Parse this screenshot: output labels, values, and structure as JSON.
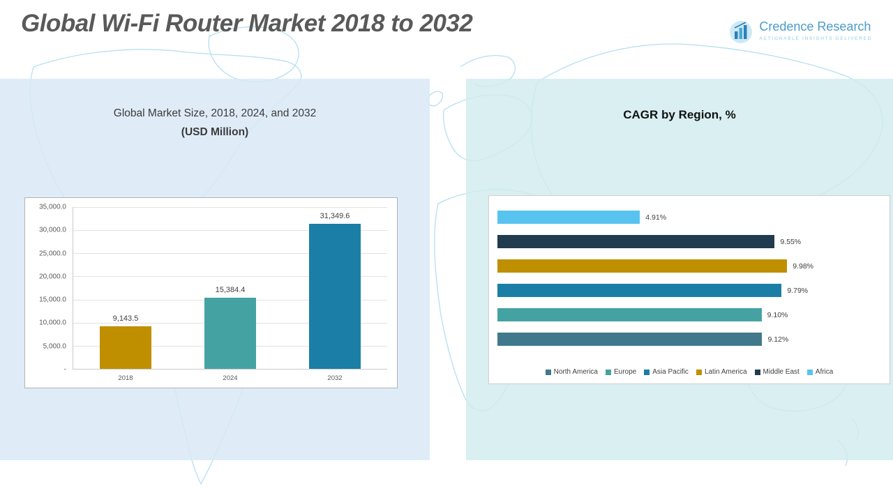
{
  "header": {
    "title": "Global Wi-Fi Router Market 2018 to 2032"
  },
  "logo": {
    "name": "Credence Research",
    "tagline": "Actionable Insights Delivered",
    "brand_color": "#4a9bc9"
  },
  "chart_data": [
    {
      "type": "bar",
      "title_line1": "Global Market Size, 2018, 2024, and 2032",
      "title_line2": "(USD Million)",
      "categories": [
        "2018",
        "2024",
        "2032"
      ],
      "values": [
        9143.5,
        15384.4,
        31349.6
      ],
      "value_labels": [
        "9,143.5",
        "15,384.4",
        "31,349.6"
      ],
      "bar_colors": [
        "#bf8f00",
        "#45a2a2",
        "#1b7ea6"
      ],
      "ylim": [
        0,
        35000
      ],
      "ytick_labels": [
        "35,000.0",
        "30,000.0",
        "25,000.0",
        "20,000.0",
        "15,000.0",
        "10,000.0",
        "5,000.0",
        "-"
      ],
      "grid": true,
      "legend_position": "none"
    },
    {
      "type": "bar-horizontal",
      "title": "CAGR by Region, %",
      "categories": [
        "Africa",
        "Middle East",
        "Latin America",
        "Asia Pacific",
        "Europe",
        "North America"
      ],
      "values": [
        4.91,
        9.55,
        9.98,
        9.79,
        9.1,
        9.12
      ],
      "value_labels": [
        "4.91%",
        "9.55%",
        "9.98%",
        "9.79%",
        "9.10%",
        "9.12%"
      ],
      "bar_colors": [
        "#58c3ef",
        "#203c4e",
        "#bf8f00",
        "#1b7ea6",
        "#45a2a2",
        "#41798c"
      ],
      "grid": false,
      "legend_position": "bottom",
      "legend": [
        {
          "label": "North America",
          "color": "#41798c"
        },
        {
          "label": "Europe",
          "color": "#45a2a2"
        },
        {
          "label": "Asia Pacific",
          "color": "#1b7ea6"
        },
        {
          "label": "Latin America",
          "color": "#bf8f00"
        },
        {
          "label": "Middle East",
          "color": "#203c4e"
        },
        {
          "label": "Africa",
          "color": "#58c3ef"
        }
      ]
    }
  ]
}
